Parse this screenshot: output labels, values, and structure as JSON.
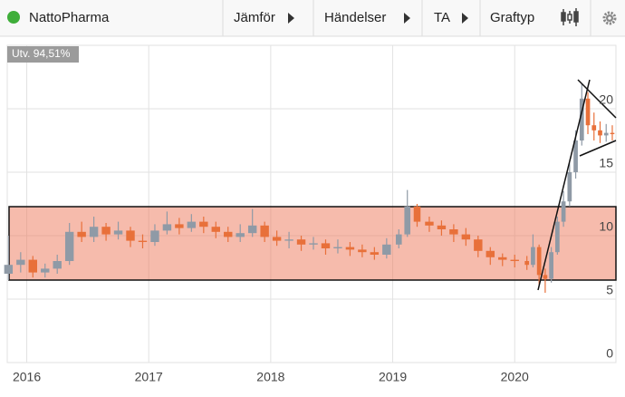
{
  "toolbar": {
    "title": "NattoPharma",
    "menu": [
      "Jämför",
      "Händelser",
      "TA",
      "Graftyp"
    ]
  },
  "chart_data": {
    "type": "candlestick",
    "annotation": "Utv. 94,51%",
    "x": [
      2015.85,
      2015.95,
      2016.05,
      2016.15,
      2016.25,
      2016.35,
      2016.45,
      2016.55,
      2016.65,
      2016.75,
      2016.85,
      2016.95,
      2017.05,
      2017.15,
      2017.25,
      2017.35,
      2017.45,
      2017.55,
      2017.65,
      2017.75,
      2017.85,
      2017.95,
      2018.05,
      2018.15,
      2018.25,
      2018.35,
      2018.45,
      2018.55,
      2018.65,
      2018.75,
      2018.85,
      2018.95,
      2019.05,
      2019.12,
      2019.2,
      2019.3,
      2019.4,
      2019.5,
      2019.6,
      2019.7,
      2019.8,
      2019.9,
      2020.0,
      2020.1,
      2020.15,
      2020.2,
      2020.25,
      2020.3,
      2020.35,
      2020.4,
      2020.45,
      2020.5,
      2020.55,
      2020.6,
      2020.65,
      2020.7,
      2020.75,
      2020.8
    ],
    "open": [
      7.0,
      7.7,
      8.1,
      7.1,
      7.4,
      8.0,
      10.3,
      9.9,
      10.7,
      10.1,
      10.4,
      9.6,
      9.5,
      10.4,
      10.9,
      10.6,
      11.1,
      10.7,
      10.3,
      9.9,
      10.2,
      10.8,
      9.9,
      9.6,
      9.7,
      9.3,
      9.4,
      9.0,
      9.1,
      8.9,
      8.7,
      8.5,
      9.3,
      10.1,
      12.3,
      11.1,
      10.8,
      10.5,
      10.1,
      9.7,
      8.8,
      8.3,
      8.1,
      8.0,
      7.7,
      9.1,
      6.9,
      6.6,
      8.7,
      11.1,
      12.7,
      15.0,
      17.5,
      20.8,
      18.7,
      18.3,
      17.9,
      18.1
    ],
    "high": [
      10.0,
      8.7,
      8.4,
      7.8,
      8.5,
      11.0,
      11.1,
      11.5,
      11.0,
      11.1,
      10.7,
      10.1,
      10.9,
      11.9,
      11.4,
      11.7,
      11.5,
      11.1,
      10.7,
      10.9,
      12.1,
      11.1,
      10.4,
      10.3,
      10.0,
      9.9,
      9.7,
      9.7,
      9.5,
      9.3,
      9.1,
      9.8,
      10.5,
      13.6,
      12.5,
      11.5,
      11.2,
      10.9,
      10.6,
      10.0,
      9.1,
      8.6,
      8.5,
      8.4,
      10.1,
      9.3,
      7.4,
      9.1,
      11.5,
      13.5,
      15.7,
      18.3,
      22.0,
      21.3,
      19.7,
      19.0,
      18.8,
      18.7
    ],
    "low": [
      6.5,
      7.1,
      6.7,
      6.7,
      7.0,
      7.7,
      9.5,
      9.5,
      9.6,
      9.7,
      9.1,
      9.0,
      9.2,
      10.1,
      10.1,
      10.3,
      10.2,
      9.8,
      9.5,
      9.5,
      9.9,
      9.5,
      9.2,
      9.0,
      8.8,
      8.9,
      8.5,
      8.6,
      8.4,
      8.3,
      8.1,
      8.2,
      9.0,
      9.9,
      10.7,
      10.3,
      10.0,
      9.5,
      9.2,
      8.3,
      7.7,
      7.6,
      7.5,
      7.3,
      7.5,
      6.1,
      5.5,
      6.3,
      8.5,
      10.7,
      12.3,
      14.5,
      17.1,
      18.0,
      17.5,
      17.3,
      17.4,
      17.5
    ],
    "close": [
      7.7,
      8.1,
      7.1,
      7.4,
      8.0,
      10.3,
      9.9,
      10.7,
      10.1,
      10.4,
      9.6,
      9.5,
      10.4,
      10.9,
      10.6,
      11.1,
      10.7,
      10.3,
      9.9,
      10.2,
      10.8,
      9.9,
      9.6,
      9.7,
      9.3,
      9.4,
      9.0,
      9.1,
      8.9,
      8.7,
      8.5,
      9.3,
      10.1,
      12.3,
      11.1,
      10.8,
      10.5,
      10.1,
      9.7,
      8.8,
      8.3,
      8.1,
      8.0,
      7.7,
      9.1,
      6.9,
      6.6,
      8.7,
      11.1,
      12.7,
      15.0,
      17.5,
      20.8,
      18.7,
      18.3,
      17.9,
      18.1,
      18.0
    ],
    "up_color": "#8f9aa6",
    "down_color": "#e8703a",
    "xlim": [
      2015.84,
      2020.83
    ],
    "xticks": [
      2016,
      2017,
      2018,
      2019,
      2020
    ],
    "ylim": [
      0,
      25
    ],
    "yticks": [
      0,
      5,
      10,
      15,
      20
    ],
    "grid": true
  }
}
